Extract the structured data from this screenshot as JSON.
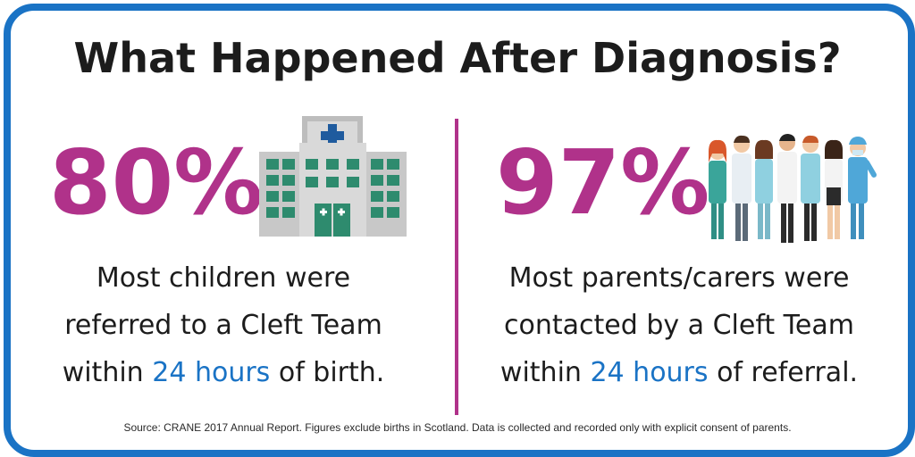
{
  "title": "What Happened After Diagnosis?",
  "left": {
    "stat": "80%",
    "line1": "Most children were",
    "line2": "referred to a Cleft Team",
    "line3_pre": "within ",
    "line3_hl": "24 hours",
    "line3_post": " of birth.",
    "icon": "hospital-icon"
  },
  "right": {
    "stat": "97%",
    "line1": "Most parents/carers were",
    "line2": "contacted by a Cleft Team",
    "line3_pre": "within ",
    "line3_hl": "24 hours",
    "line3_post": " of referral.",
    "icon": "medical-staff-icon"
  },
  "footer": "Source: CRANE 2017 Annual Report. Figures exclude births in Scotland. Data is collected and recorded only with explicit consent of parents.",
  "colors": {
    "border": "#1a73c5",
    "accent": "#b0328a",
    "highlight": "#1a73c5"
  }
}
